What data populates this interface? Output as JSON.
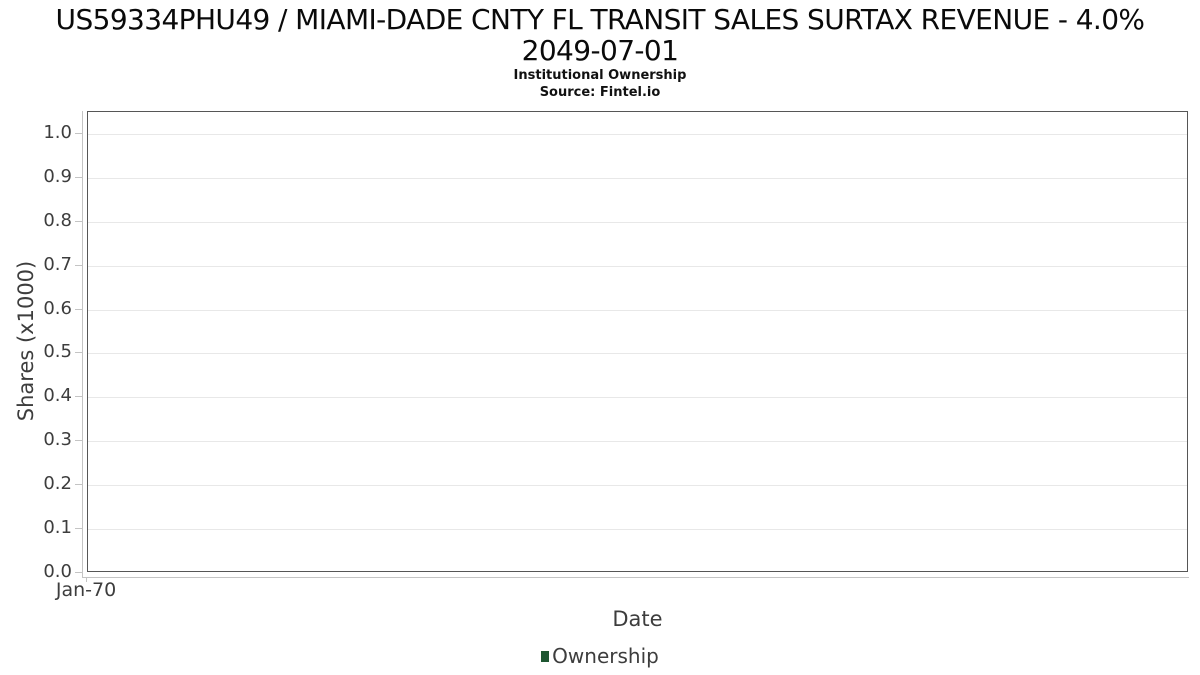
{
  "chart_data": {
    "type": "line",
    "title_line1": "US59334PHU49 / MIAMI-DADE CNTY FL TRANSIT SALES SURTAX REVENUE - 4.0%",
    "title_line2": "2049-07-01",
    "subtitle": "Institutional Ownership",
    "source": "Source: Fintel.io",
    "xlabel": "Date",
    "ylabel": "Shares (x1000)",
    "x_ticks": [
      "Jan-70"
    ],
    "y_ticks": [
      "0.0",
      "0.1",
      "0.2",
      "0.3",
      "0.4",
      "0.5",
      "0.6",
      "0.7",
      "0.8",
      "0.9",
      "1.0"
    ],
    "ylim": [
      0,
      1.05
    ],
    "grid": true,
    "legend_position": "bottom",
    "series": [
      {
        "name": "Ownership",
        "color": "#1e5631",
        "values": []
      }
    ],
    "colors": {
      "plot_border": "#565656",
      "axis_line": "#c4c4c4",
      "gridline": "#e8e8e8",
      "tick_text": "#3d3d3d",
      "legend_marker": "#1e5631"
    }
  }
}
